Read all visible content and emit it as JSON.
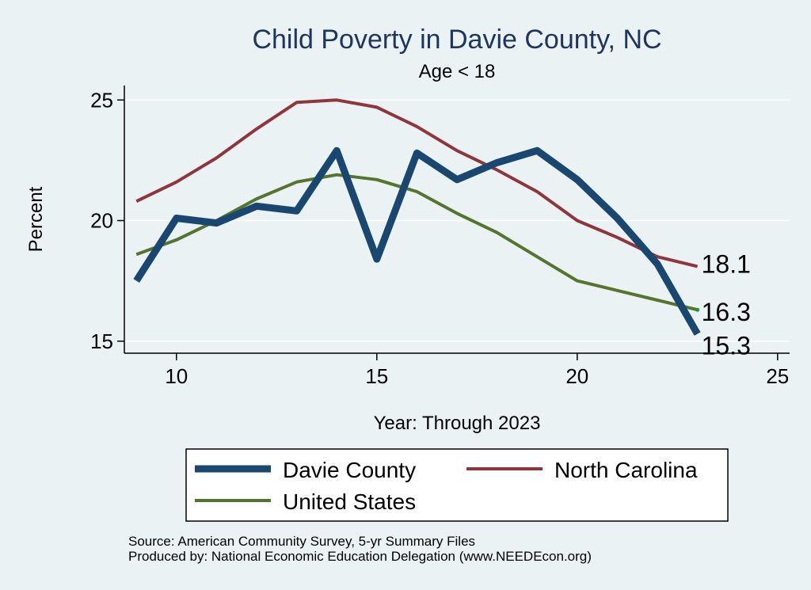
{
  "chart_data": {
    "type": "line",
    "title": "Child Poverty in Davie County, NC",
    "subtitle": "Age < 18",
    "xlabel": "Year: Through 2023",
    "ylabel": "Percent",
    "xlim": [
      8.7,
      25.3
    ],
    "ylim": [
      14.5,
      25.6
    ],
    "xticks": [
      10,
      15,
      20,
      25
    ],
    "yticks": [
      15,
      20,
      25
    ],
    "x": [
      9,
      10,
      11,
      12,
      13,
      14,
      15,
      16,
      17,
      18,
      19,
      20,
      21,
      22,
      23
    ],
    "series": [
      {
        "name": "Davie County",
        "color": "#1a476f",
        "width": 9,
        "values": [
          17.5,
          20.1,
          19.9,
          20.6,
          20.4,
          22.9,
          18.4,
          22.8,
          21.7,
          22.4,
          22.9,
          21.7,
          20.1,
          18.2,
          15.3
        ],
        "end_label": "15.3"
      },
      {
        "name": "North Carolina",
        "color": "#90353b",
        "width": 4,
        "values": [
          20.8,
          21.6,
          22.6,
          23.8,
          24.9,
          25.0,
          24.7,
          23.9,
          22.9,
          22.1,
          21.2,
          20.0,
          19.3,
          18.5,
          18.1
        ],
        "end_label": "18.1"
      },
      {
        "name": "United States",
        "color": "#55752f",
        "width": 4,
        "values": [
          18.6,
          19.2,
          20.0,
          20.9,
          21.6,
          21.9,
          21.7,
          21.2,
          20.3,
          19.5,
          18.5,
          17.5,
          17.1,
          16.7,
          16.3
        ],
        "end_label": "16.3"
      }
    ],
    "legend_position": "bottom"
  },
  "footnotes": {
    "source": "Source: American Community Survey, 5-yr Summary Files",
    "produced": "Produced by: National Economic Education Delegation (www.NEEDEcon.org)"
  }
}
